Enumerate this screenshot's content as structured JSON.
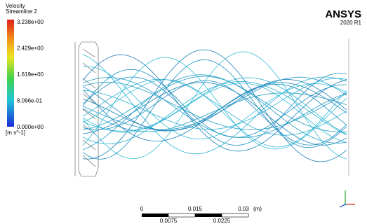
{
  "legend": {
    "title": "Velocity",
    "subtitle": "Streamline 2",
    "labels": [
      "3.238e+00",
      "2.429e+00",
      "1.619e+00",
      "8.096e-01",
      "0.000e+00"
    ],
    "unit": "[m s^-1]"
  },
  "brand": {
    "name": "ANSYS",
    "version": "2020 R1"
  },
  "scale": {
    "top_labels": [
      "0",
      "0.015",
      "0.03"
    ],
    "unit": "(m)",
    "bottom_labels": [
      "0.0075",
      "0.0225"
    ]
  }
}
